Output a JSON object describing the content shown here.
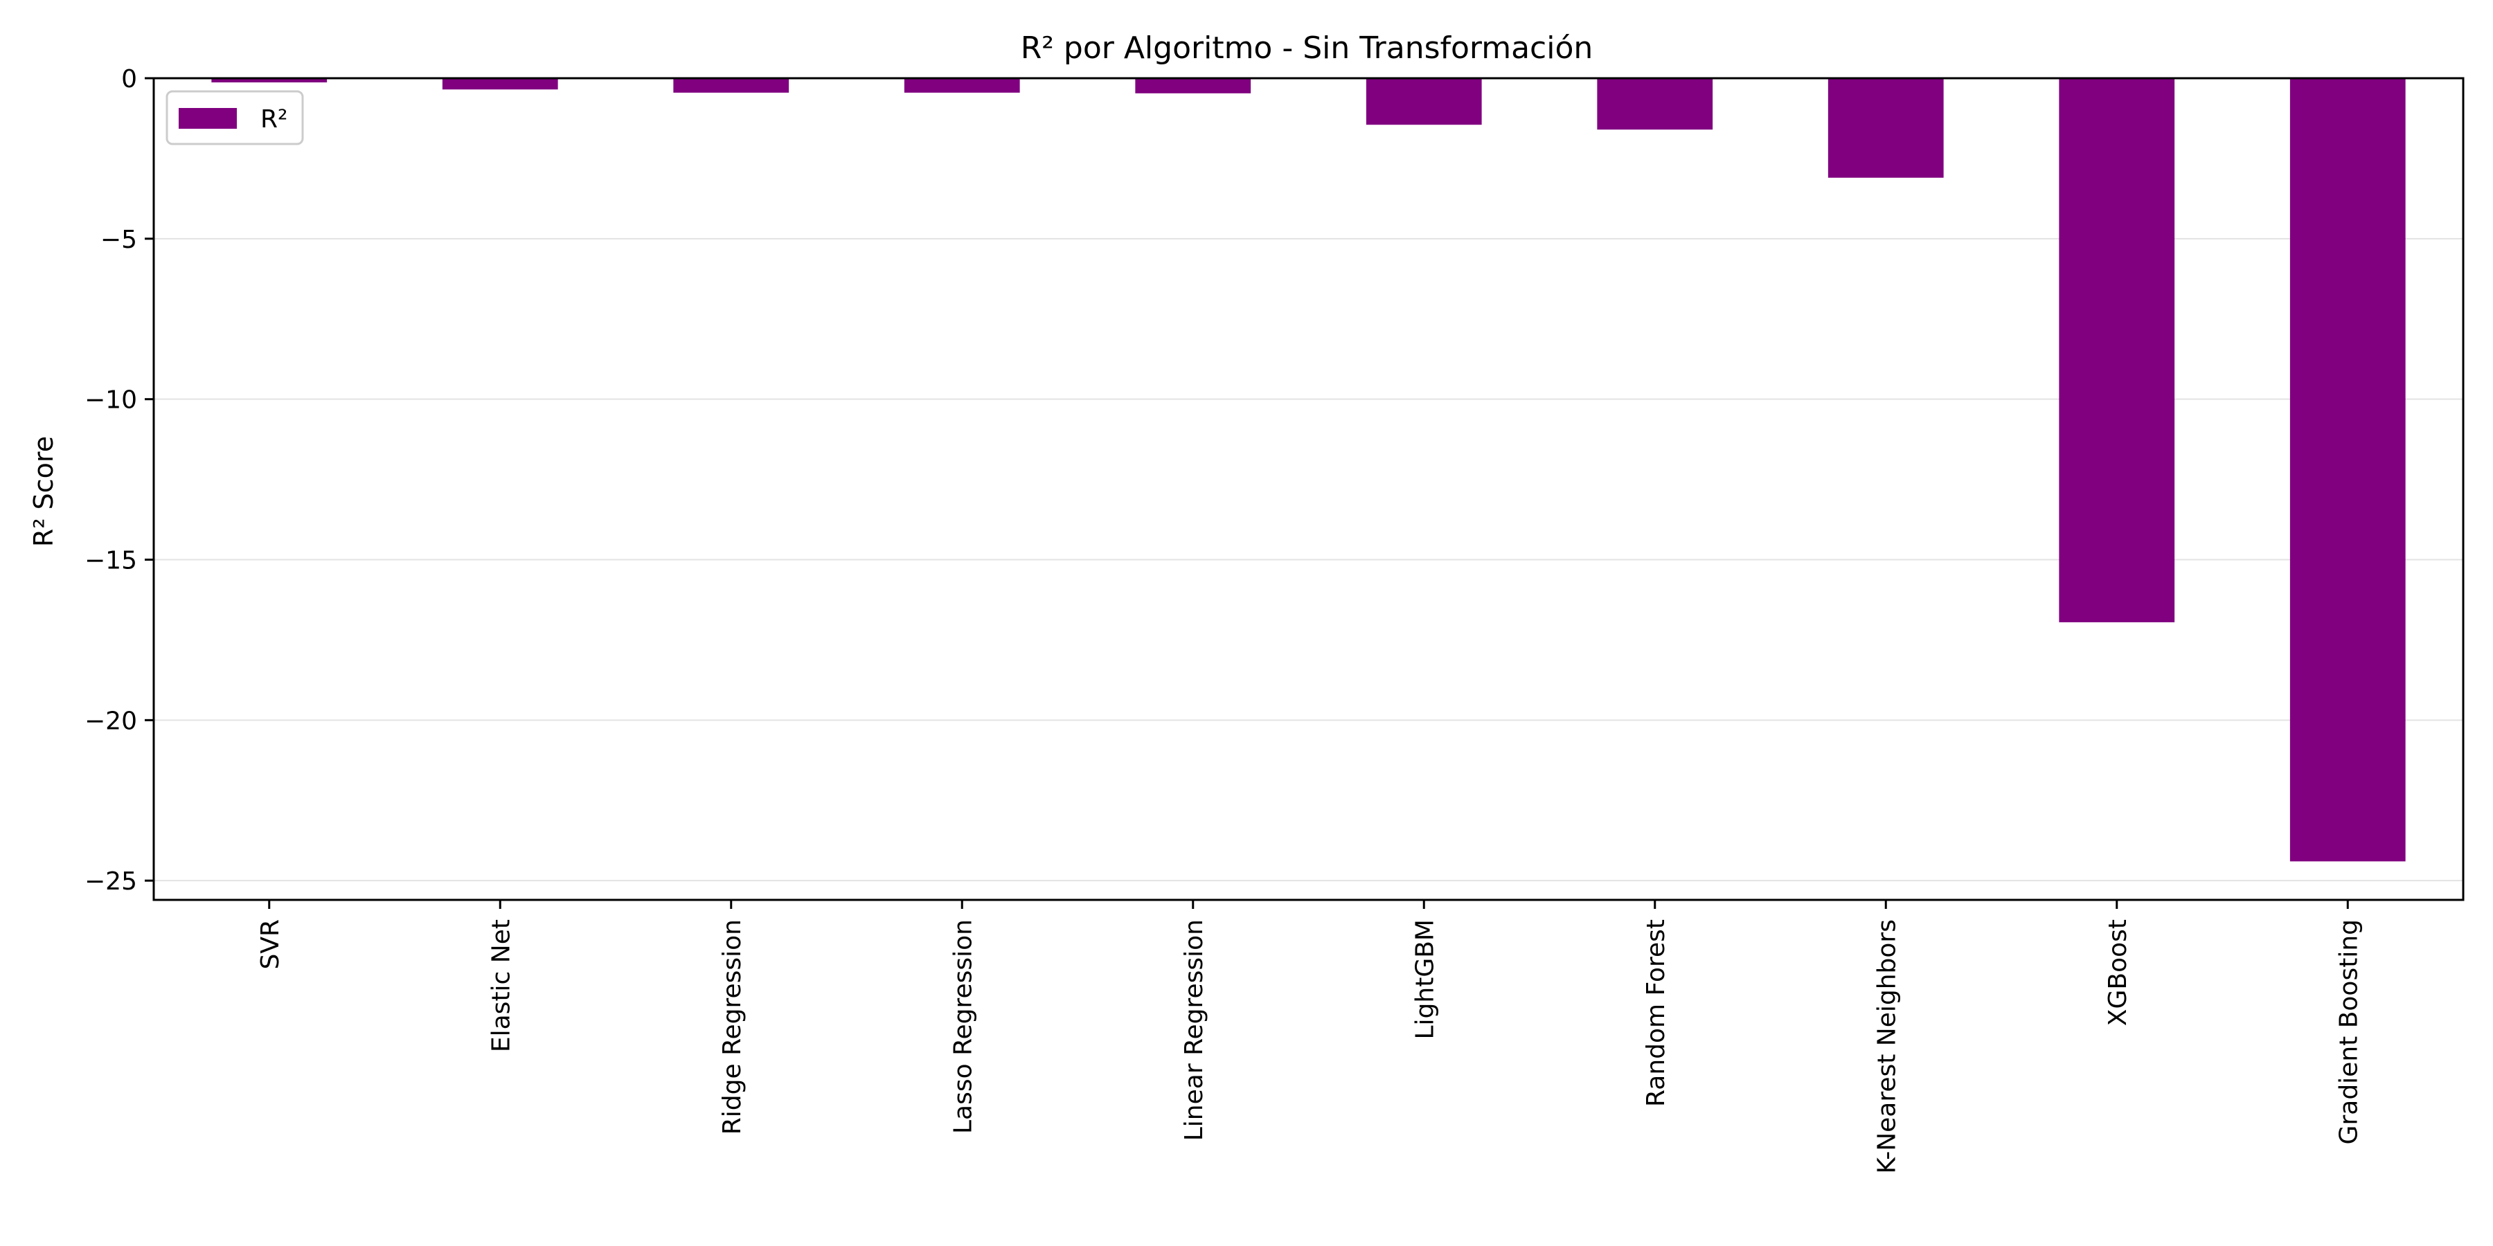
{
  "chart_data": {
    "type": "bar",
    "title": "R² por Algoritmo - Sin Transformación",
    "xlabel": "",
    "ylabel": "R² Score",
    "categories": [
      "SVR",
      "Elastic Net",
      "Ridge Regression",
      "Lasso Regression",
      "Linear Regression",
      "LightGBM",
      "Random Forest",
      "K-Nearest Neighbors",
      "XGBoost",
      "Gradient Boosting"
    ],
    "series": [
      {
        "name": "R²",
        "color": "#800080",
        "values": [
          -0.13,
          -0.35,
          -0.45,
          -0.45,
          -0.47,
          -1.45,
          -1.6,
          -3.1,
          -16.95,
          -24.4
        ]
      }
    ],
    "ylim": [
      -25.6,
      0
    ],
    "yticks": [
      0,
      -5,
      -10,
      -15,
      -20,
      -25
    ],
    "ytick_labels": [
      "0",
      "−5",
      "−10",
      "−15",
      "−20",
      "−25"
    ],
    "grid": "horizontal",
    "legend": "top-left"
  }
}
